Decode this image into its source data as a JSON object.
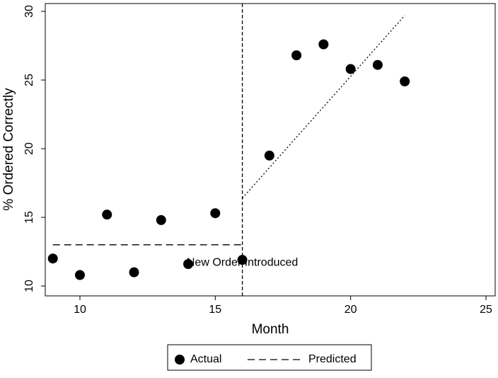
{
  "chart_data": {
    "type": "scatter",
    "x_label": "Month",
    "y_label": "% Ordered Correctly",
    "xlim": [
      8.72,
      25.34
    ],
    "xticks": [
      10,
      15,
      20,
      25
    ],
    "ylim": [
      9.28,
      30.57
    ],
    "yticks": [
      10,
      15,
      20,
      25,
      30
    ],
    "series": [
      {
        "name": "Actual",
        "type": "scatter",
        "color": "#000000",
        "x": [
          9,
          10,
          11,
          12,
          13,
          14,
          15,
          16,
          17,
          18,
          19,
          20,
          21,
          22
        ],
        "values": [
          12.0,
          10.8,
          15.2,
          11.0,
          14.8,
          11.6,
          15.3,
          11.9,
          19.5,
          26.8,
          27.6,
          25.8,
          26.1,
          24.9
        ]
      },
      {
        "name": "Predicted",
        "type": "line",
        "dash": "dashed",
        "color": "#000000",
        "x": [
          9,
          16
        ],
        "values": [
          13.0,
          13.0
        ]
      },
      {
        "type": "line",
        "dash": "dotted",
        "color": "#000000",
        "x": [
          16,
          22
        ],
        "values": [
          16.4,
          29.7
        ]
      }
    ],
    "vline": {
      "x": 16,
      "label": "New Order Introduced"
    },
    "legend": "bottom"
  }
}
